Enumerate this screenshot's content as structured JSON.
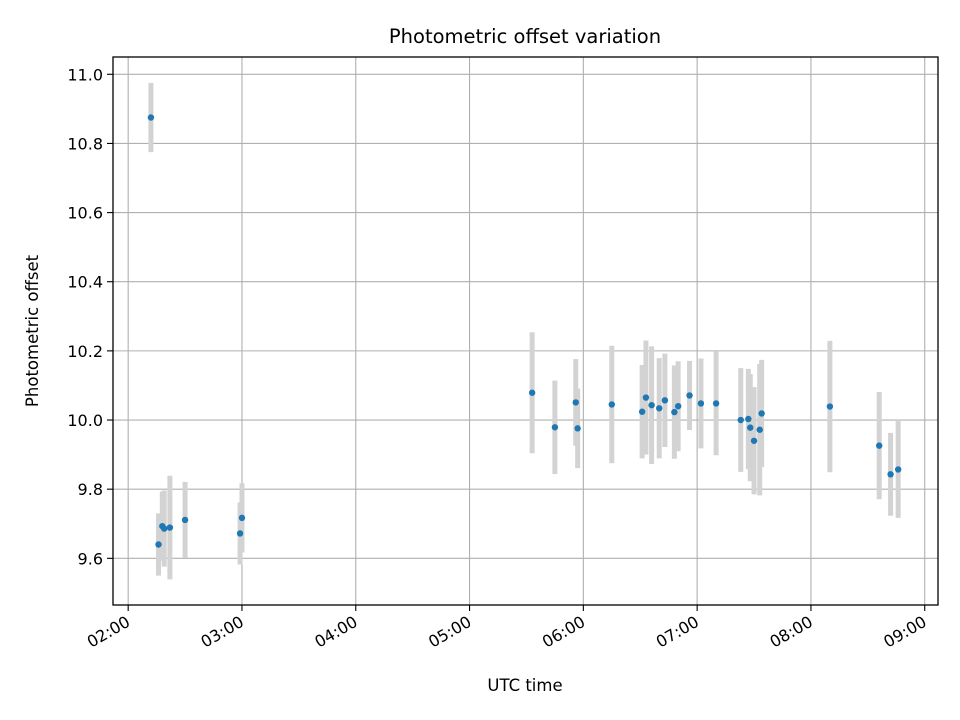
{
  "chart_data": {
    "type": "scatter",
    "title": "Photometric offset variation",
    "xlabel": "UTC time",
    "ylabel": "Photometric offset",
    "x_unit": "UTC time (HH:MM)",
    "xlim": [
      "01:52",
      "09:07"
    ],
    "ylim": [
      9.465,
      11.05
    ],
    "x_ticks": [
      "02:00",
      "03:00",
      "04:00",
      "05:00",
      "06:00",
      "07:00",
      "08:00",
      "09:00"
    ],
    "y_ticks": [
      9.6,
      9.8,
      10.0,
      10.2,
      10.4,
      10.6,
      10.8,
      11.0
    ],
    "grid": true,
    "colors": {
      "marker": "#1f77b4",
      "errorbar": "#d3d3d3",
      "grid": "#b0b0b0"
    },
    "points": [
      {
        "x": "02:12",
        "y": 10.875,
        "err": 0.1
      },
      {
        "x": "02:16",
        "y": 9.64,
        "err": 0.09
      },
      {
        "x": "02:18",
        "y": 9.693,
        "err": 0.1
      },
      {
        "x": "02:19",
        "y": 9.686,
        "err": 0.11
      },
      {
        "x": "02:22",
        "y": 9.689,
        "err": 0.15
      },
      {
        "x": "02:30",
        "y": 9.711,
        "err": 0.11
      },
      {
        "x": "02:59",
        "y": 9.672,
        "err": 0.09
      },
      {
        "x": "03:00",
        "y": 9.717,
        "err": 0.1
      },
      {
        "x": "05:33",
        "y": 10.079,
        "err": 0.175
      },
      {
        "x": "05:45",
        "y": 9.979,
        "err": 0.135
      },
      {
        "x": "05:56",
        "y": 10.051,
        "err": 0.125
      },
      {
        "x": "05:57",
        "y": 9.976,
        "err": 0.115
      },
      {
        "x": "06:15",
        "y": 10.045,
        "err": 0.17
      },
      {
        "x": "06:31",
        "y": 10.024,
        "err": 0.135
      },
      {
        "x": "06:33",
        "y": 10.065,
        "err": 0.165
      },
      {
        "x": "06:36",
        "y": 10.043,
        "err": 0.17
      },
      {
        "x": "06:40",
        "y": 10.034,
        "err": 0.145
      },
      {
        "x": "06:43",
        "y": 10.057,
        "err": 0.135
      },
      {
        "x": "06:48",
        "y": 10.023,
        "err": 0.135
      },
      {
        "x": "06:50",
        "y": 10.04,
        "err": 0.13
      },
      {
        "x": "06:56",
        "y": 10.071,
        "err": 0.1
      },
      {
        "x": "07:02",
        "y": 10.048,
        "err": 0.13
      },
      {
        "x": "07:10",
        "y": 10.048,
        "err": 0.15
      },
      {
        "x": "07:23",
        "y": 10.0,
        "err": 0.15
      },
      {
        "x": "07:27",
        "y": 10.003,
        "err": 0.145
      },
      {
        "x": "07:28",
        "y": 9.978,
        "err": 0.155
      },
      {
        "x": "07:30",
        "y": 9.94,
        "err": 0.155
      },
      {
        "x": "07:33",
        "y": 9.972,
        "err": 0.19
      },
      {
        "x": "07:34",
        "y": 10.019,
        "err": 0.155
      },
      {
        "x": "08:10",
        "y": 10.039,
        "err": 0.19
      },
      {
        "x": "08:36",
        "y": 9.926,
        "err": 0.155
      },
      {
        "x": "08:42",
        "y": 9.843,
        "err": 0.12
      },
      {
        "x": "08:46",
        "y": 9.857,
        "err": 0.14
      }
    ]
  }
}
